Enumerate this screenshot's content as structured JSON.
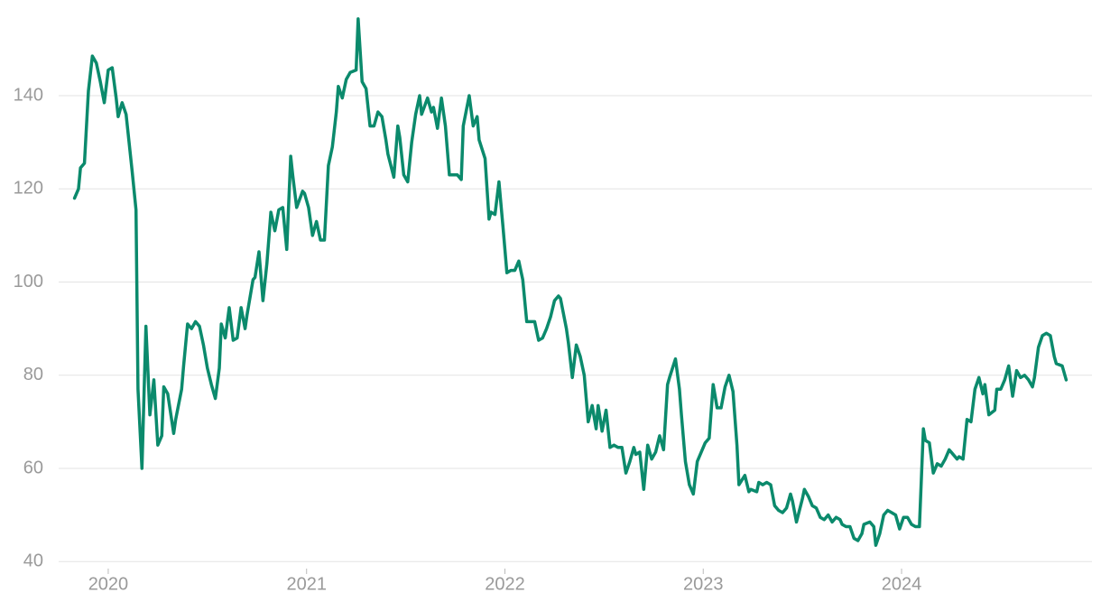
{
  "chart_data": {
    "type": "line",
    "color": "#0b8a6c",
    "grid": true,
    "xlim": [
      2019.75,
      2024.96
    ],
    "xticks": [
      2020,
      2021,
      2022,
      2023,
      2024
    ],
    "ylim": [
      38.5,
      158.6
    ],
    "yticks": [
      40,
      60,
      80,
      100,
      120,
      140
    ],
    "x": [
      2019.83,
      2019.85,
      2019.86,
      2019.88,
      2019.9,
      2019.92,
      2019.94,
      2019.96,
      2019.98,
      2020.0,
      2020.02,
      2020.04,
      2020.05,
      2020.07,
      2020.09,
      2020.12,
      2020.14,
      2020.15,
      2020.17,
      2020.19,
      2020.21,
      2020.23,
      2020.25,
      2020.27,
      2020.28,
      2020.3,
      2020.33,
      2020.34,
      2020.37,
      2020.38,
      2020.4,
      2020.42,
      2020.44,
      2020.46,
      2020.48,
      2020.5,
      2020.52,
      2020.54,
      2020.56,
      2020.57,
      2020.59,
      2020.61,
      2020.63,
      2020.65,
      2020.67,
      2020.69,
      2020.7,
      2020.73,
      2020.74,
      2020.76,
      2020.78,
      2020.8,
      2020.82,
      2020.84,
      2020.86,
      2020.88,
      2020.9,
      2020.92,
      2020.93,
      2020.95,
      2020.98,
      2020.99,
      2021.01,
      2021.03,
      2021.05,
      2021.07,
      2021.09,
      2021.11,
      2021.13,
      2021.15,
      2021.16,
      2021.18,
      2021.2,
      2021.22,
      2021.25,
      2021.26,
      2021.28,
      2021.3,
      2021.32,
      2021.34,
      2021.36,
      2021.38,
      2021.4,
      2021.41,
      2021.44,
      2021.46,
      2021.47,
      2021.49,
      2021.51,
      2021.53,
      2021.55,
      2021.57,
      2021.58,
      2021.61,
      2021.63,
      2021.64,
      2021.66,
      2021.68,
      2021.7,
      2021.72,
      2021.74,
      2021.76,
      2021.78,
      2021.79,
      2021.82,
      2021.84,
      2021.86,
      2021.87,
      2021.9,
      2021.92,
      2021.93,
      2021.95,
      2021.97,
      2021.99,
      2022.01,
      2022.03,
      2022.05,
      2022.07,
      2022.09,
      2022.11,
      2022.13,
      2022.15,
      2022.17,
      2022.19,
      2022.21,
      2022.23,
      2022.25,
      2022.27,
      2022.28,
      2022.31,
      2022.32,
      2022.34,
      2022.36,
      2022.38,
      2022.4,
      2022.42,
      2022.44,
      2022.46,
      2022.47,
      2022.49,
      2022.51,
      2022.53,
      2022.55,
      2022.57,
      2022.59,
      2022.61,
      2022.63,
      2022.65,
      2022.66,
      2022.68,
      2022.7,
      2022.72,
      2022.74,
      2022.76,
      2022.78,
      2022.8,
      2022.82,
      2022.83,
      2022.86,
      2022.88,
      2022.89,
      2022.91,
      2022.93,
      2022.95,
      2022.97,
      2022.99,
      2023.01,
      2023.03,
      2023.05,
      2023.07,
      2023.09,
      2023.11,
      2023.13,
      2023.15,
      2023.17,
      2023.18,
      2023.21,
      2023.23,
      2023.24,
      2023.27,
      2023.28,
      2023.3,
      2023.32,
      2023.34,
      2023.36,
      2023.38,
      2023.4,
      2023.42,
      2023.44,
      2023.45,
      2023.47,
      2023.5,
      2023.51,
      2023.53,
      2023.55,
      2023.57,
      2023.59,
      2023.61,
      2023.63,
      2023.65,
      2023.67,
      2023.69,
      2023.7,
      2023.72,
      2023.74,
      2023.76,
      2023.78,
      2023.8,
      2023.81,
      2023.84,
      2023.86,
      2023.87,
      2023.89,
      2023.91,
      2023.93,
      2023.95,
      2023.97,
      2023.99,
      2024.01,
      2024.03,
      2024.05,
      2024.07,
      2024.09,
      2024.11,
      2024.12,
      2024.14,
      2024.16,
      2024.18,
      2024.2,
      2024.22,
      2024.24,
      2024.25,
      2024.28,
      2024.29,
      2024.31,
      2024.33,
      2024.35,
      2024.37,
      2024.39,
      2024.41,
      2024.42,
      2024.44,
      2024.47,
      2024.48,
      2024.5,
      2024.52,
      2024.54,
      2024.56,
      2024.58,
      2024.6,
      2024.62,
      2024.64,
      2024.66,
      2024.67,
      2024.69,
      2024.71,
      2024.73,
      2024.75,
      2024.77,
      2024.78,
      2024.81,
      2024.83
    ],
    "values": [
      118,
      120,
      124.5,
      125.5,
      141,
      148.5,
      147,
      143,
      138.5,
      145.5,
      146,
      139.5,
      135.5,
      138.5,
      136,
      124,
      115.5,
      77,
      60,
      90.5,
      71.5,
      79,
      65,
      67,
      77.5,
      76,
      67.5,
      70.5,
      77,
      82,
      91,
      90,
      91.5,
      90.5,
      86.5,
      81.5,
      78,
      75,
      81.5,
      91,
      88,
      94.5,
      87.5,
      88,
      94.5,
      90,
      93,
      100.5,
      101,
      106.5,
      96,
      104,
      115,
      111,
      115.5,
      116,
      107,
      127,
      123,
      116,
      119.5,
      119,
      116,
      110,
      113,
      109,
      109,
      125,
      129,
      136.5,
      142,
      139.5,
      143.5,
      145,
      145.5,
      156.5,
      143,
      141.5,
      133.5,
      133.5,
      136.5,
      135.5,
      130.5,
      127.5,
      122.5,
      133.5,
      131,
      123,
      121.5,
      130,
      136,
      140,
      136,
      139.5,
      136.5,
      137.5,
      133,
      139.5,
      133.5,
      123,
      123,
      123,
      122,
      133.5,
      140,
      133.5,
      135.5,
      130.5,
      126.5,
      113.5,
      115,
      114.5,
      121.5,
      112,
      102,
      102.5,
      102.5,
      104.5,
      100.5,
      91.5,
      91.5,
      91.5,
      87.5,
      88,
      90,
      92.5,
      96,
      97,
      96.5,
      90,
      87,
      79.5,
      86.5,
      84,
      80,
      70,
      73.5,
      68.5,
      73.5,
      68,
      72.5,
      64.5,
      65,
      64.5,
      64.5,
      59,
      61.5,
      64.5,
      63,
      63.5,
      55.5,
      65,
      62,
      63.5,
      67,
      64,
      78,
      79.5,
      83.5,
      77,
      71.5,
      61.5,
      56.5,
      54.5,
      61.5,
      63.5,
      65.5,
      66.5,
      78,
      73,
      73,
      77.5,
      80,
      76.5,
      65,
      56.5,
      58.5,
      55,
      55.5,
      55,
      57,
      56.5,
      57,
      56.5,
      52,
      51,
      50.5,
      51.5,
      54.5,
      53,
      48.5,
      53.5,
      55.5,
      54,
      52,
      51.5,
      49.5,
      49,
      50,
      48.5,
      49.5,
      49,
      48,
      47.5,
      47.5,
      45,
      44.5,
      46,
      48,
      48.5,
      47.5,
      43.5,
      46,
      50,
      51,
      50.5,
      50,
      47,
      49.5,
      49.5,
      48,
      47.5,
      47.5,
      68.5,
      66,
      65.5,
      59,
      61,
      60.5,
      62,
      64,
      63.5,
      62,
      62.5,
      62,
      70.5,
      70,
      77,
      79.5,
      76,
      78,
      71.5,
      72.5,
      77,
      77,
      79,
      82,
      75.5,
      81,
      79.5,
      80,
      79,
      77.5,
      79.5,
      86,
      88.5,
      89,
      88.5,
      84,
      82.5,
      82,
      79
    ]
  }
}
